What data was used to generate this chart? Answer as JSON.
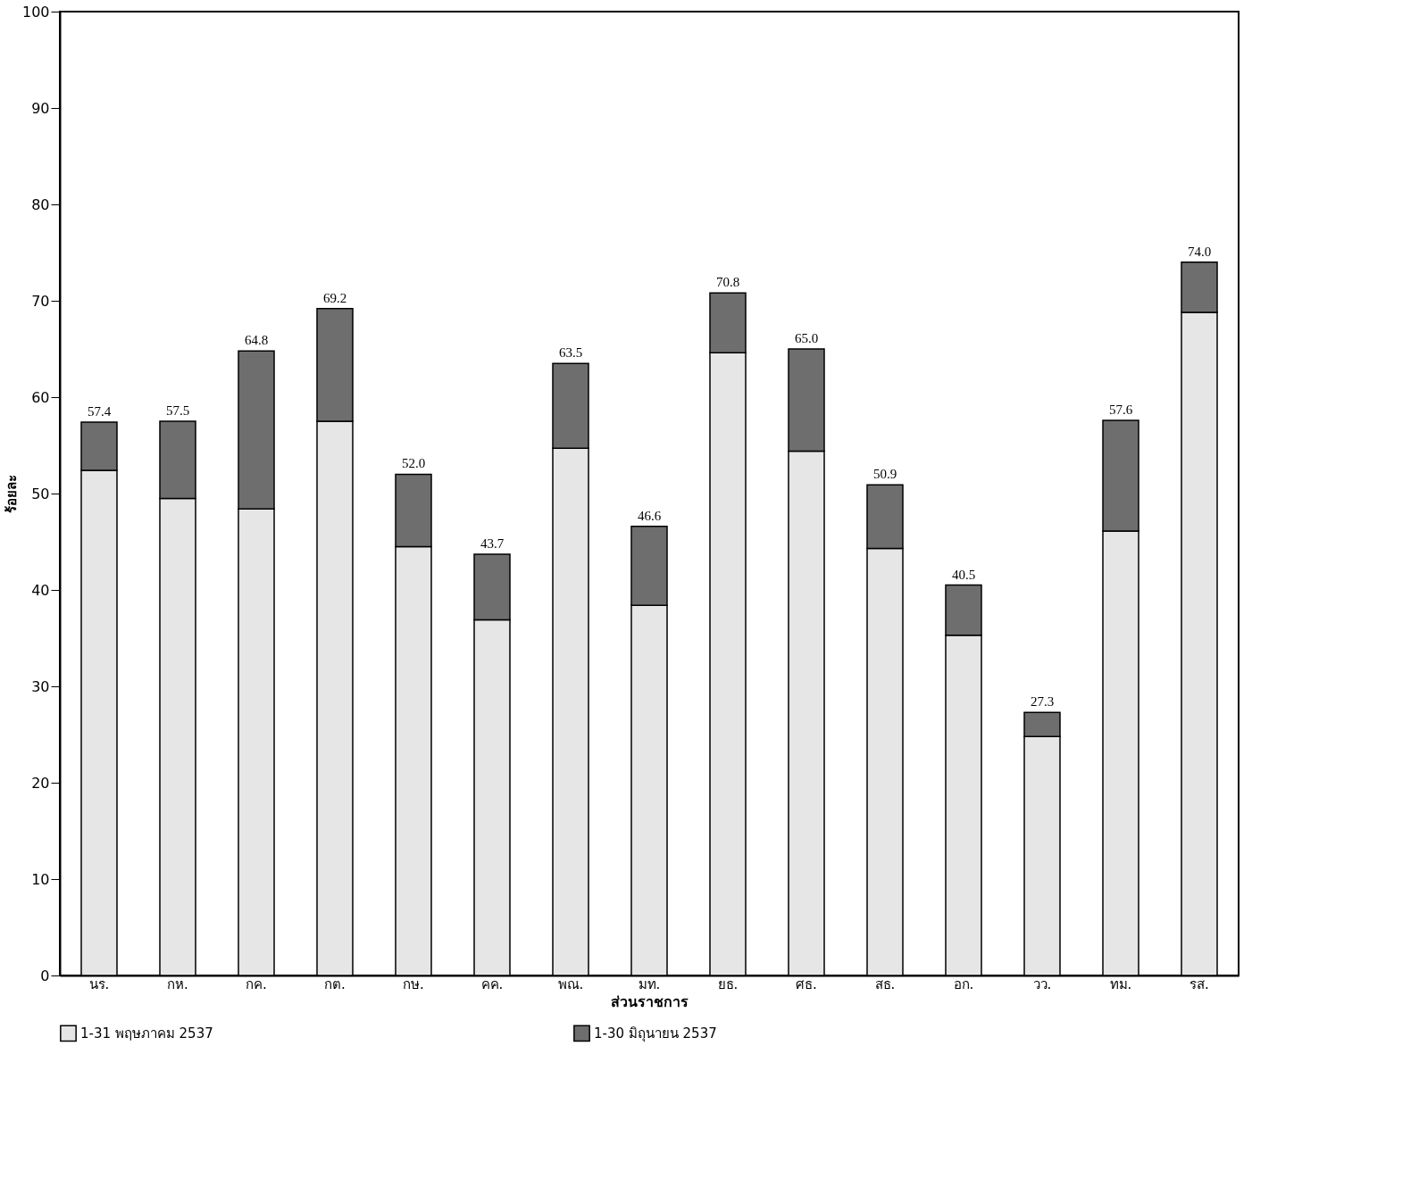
{
  "chart_data": {
    "type": "bar",
    "stacked": true,
    "xlabel": "ส่วนราชการ",
    "ylabel": "ร้อยละ",
    "categories": [
      "นร.",
      "กห.",
      "กค.",
      "กต.",
      "กษ.",
      "คค.",
      "พณ.",
      "มท.",
      "ยธ.",
      "ศธ.",
      "สธ.",
      "อก.",
      "วว.",
      "ทม.",
      "รส."
    ],
    "series": [
      {
        "name": "1-31 พฤษภาคม 2537",
        "color": "#e6e6e6",
        "values": [
          52.4,
          49.5,
          48.4,
          57.5,
          44.5,
          36.9,
          54.7,
          38.4,
          64.6,
          54.4,
          44.3,
          35.3,
          24.8,
          46.1,
          68.8
        ]
      },
      {
        "name": "1-30 มิถุนายน 2537",
        "color": "#6e6e6e",
        "values": [
          5.0,
          8.0,
          16.4,
          11.7,
          7.5,
          6.8,
          8.8,
          8.2,
          6.2,
          10.6,
          6.6,
          5.2,
          2.5,
          11.5,
          5.2
        ]
      }
    ],
    "totals": [
      "57.4",
      "57.5",
      "64.8",
      "69.2",
      "52.0",
      "43.7",
      "63.5",
      "46.6",
      "70.8",
      "65.0",
      "50.9",
      "40.5",
      "27.3",
      "57.6",
      "74.0"
    ],
    "ylim": [
      0,
      100
    ],
    "yticks": [
      0,
      10,
      20,
      30,
      40,
      50,
      60,
      70,
      80,
      90,
      100
    ],
    "grid": false,
    "legend": "bottom"
  }
}
